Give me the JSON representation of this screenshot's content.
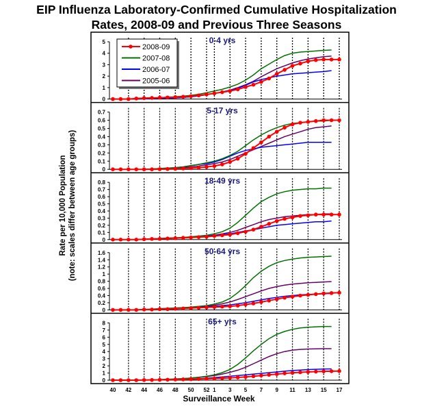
{
  "chart_data": {
    "type": "line",
    "title": "EIP Influenza Laboratory-Confirmed Cumulative Hospitalization Rates, 2008-09 and Previous Three Seasons",
    "title_lines": [
      "EIP Influenza Laboratory-Confirmed Cumulative Hospitalization",
      "Rates, 2008-09 and Previous Three Seasons"
    ],
    "xlabel": "Surveillance Week",
    "ylabel_lines": [
      "Rate per 10,000 Population",
      "(note: scales differ between age groups)"
    ],
    "x": [
      40,
      41,
      42,
      43,
      44,
      45,
      46,
      47,
      48,
      49,
      50,
      51,
      52,
      1,
      2,
      3,
      4,
      5,
      6,
      7,
      8,
      9,
      10,
      11,
      12,
      13,
      14,
      15,
      16,
      17
    ],
    "x_tick_labels": [
      "40",
      "42",
      "44",
      "46",
      "48",
      "50",
      "52",
      "1",
      "3",
      "5",
      "7",
      "9",
      "11",
      "13",
      "15",
      "17"
    ],
    "legend": {
      "placement": "top-left of first panel",
      "entries": [
        "2008-09",
        "2007-08",
        "2006-07",
        "2005-06"
      ]
    },
    "colors": {
      "2008-09": "#ff0000",
      "2007-08": "#007000",
      "2006-07": "#0000ff",
      "2005-06": "#660066"
    },
    "grid": "vertical dotted lines at labelled weeks",
    "panels": [
      {
        "title": "0-4 yrs",
        "ylim": [
          0,
          5
        ],
        "yticks": [
          "0",
          "1",
          "2",
          "3",
          "4",
          "5"
        ],
        "series": [
          {
            "name": "2008-09",
            "values": [
              0,
              0,
              0,
              0.05,
              0.08,
              0.1,
              0.12,
              0.14,
              0.17,
              0.2,
              0.25,
              0.32,
              0.4,
              0.5,
              0.6,
              0.7,
              0.85,
              1.05,
              1.25,
              1.5,
              1.8,
              2.2,
              2.55,
              2.9,
              3.1,
              3.3,
              3.4,
              3.45,
              3.45,
              3.45
            ]
          },
          {
            "name": "2007-08",
            "values": [
              0,
              0,
              0,
              0.02,
              0.05,
              0.08,
              0.12,
              0.16,
              0.2,
              0.25,
              0.32,
              0.42,
              0.55,
              0.7,
              0.85,
              1.05,
              1.3,
              1.65,
              2.1,
              2.65,
              3.05,
              3.45,
              3.8,
              4.0,
              4.1,
              4.15,
              4.2,
              4.25,
              4.28
            ]
          },
          {
            "name": "2006-07",
            "values": [
              0,
              0,
              0,
              0,
              0.02,
              0.04,
              0.06,
              0.08,
              0.1,
              0.15,
              0.2,
              0.28,
              0.38,
              0.5,
              0.6,
              0.75,
              0.95,
              1.2,
              1.5,
              1.7,
              1.85,
              2.0,
              2.1,
              2.2,
              2.25,
              2.3,
              2.35,
              2.4,
              2.48
            ]
          },
          {
            "name": "2005-06",
            "values": [
              0,
              0,
              0,
              0,
              0.02,
              0.04,
              0.06,
              0.08,
              0.1,
              0.14,
              0.2,
              0.28,
              0.38,
              0.5,
              0.62,
              0.78,
              1.0,
              1.25,
              1.55,
              1.95,
              2.3,
              2.65,
              2.9,
              3.15,
              3.35,
              3.5,
              3.6,
              3.7,
              3.75
            ]
          }
        ]
      },
      {
        "title": "5-17 yrs",
        "ylim": [
          0,
          0.7
        ],
        "yticks": [
          "0",
          "0.1",
          "0.2",
          "0.3",
          "0.4",
          "0.5",
          "0.6",
          "0.7"
        ],
        "series": [
          {
            "name": "2008-09",
            "values": [
              0,
              0,
              0,
              0,
              0,
              0,
              0.002,
              0.004,
              0.006,
              0.01,
              0.015,
              0.02,
              0.03,
              0.04,
              0.06,
              0.09,
              0.13,
              0.19,
              0.26,
              0.33,
              0.4,
              0.46,
              0.51,
              0.55,
              0.57,
              0.58,
              0.59,
              0.6,
              0.6,
              0.6
            ]
          },
          {
            "name": "2007-08",
            "values": [
              0,
              0,
              0,
              0,
              0,
              0.005,
              0.01,
              0.015,
              0.02,
              0.03,
              0.045,
              0.06,
              0.08,
              0.1,
              0.13,
              0.17,
              0.22,
              0.29,
              0.36,
              0.42,
              0.47,
              0.51,
              0.54,
              0.56,
              0.57,
              0.58,
              0.59,
              0.59,
              0.6
            ]
          },
          {
            "name": "2006-07",
            "values": [
              0,
              0,
              0,
              0,
              0,
              0.005,
              0.01,
              0.015,
              0.02,
              0.03,
              0.045,
              0.06,
              0.07,
              0.09,
              0.12,
              0.16,
              0.2,
              0.23,
              0.25,
              0.27,
              0.28,
              0.29,
              0.3,
              0.31,
              0.32,
              0.33,
              0.33,
              0.33,
              0.33
            ]
          },
          {
            "name": "2005-06",
            "values": [
              0,
              0,
              0,
              0,
              0,
              0,
              0.005,
              0.01,
              0.015,
              0.02,
              0.03,
              0.04,
              0.055,
              0.07,
              0.09,
              0.12,
              0.16,
              0.2,
              0.24,
              0.28,
              0.32,
              0.36,
              0.4,
              0.43,
              0.46,
              0.49,
              0.51,
              0.52,
              0.53
            ]
          }
        ]
      },
      {
        "title": "18-49 yrs",
        "ylim": [
          0,
          0.8
        ],
        "yticks": [
          "0",
          "0.1",
          "0.2",
          "0.3",
          "0.4",
          "0.5",
          "0.6",
          "0.7",
          "0.8"
        ],
        "series": [
          {
            "name": "2008-09",
            "values": [
              0,
              0,
              0,
              0,
              0.005,
              0.01,
              0.01,
              0.015,
              0.02,
              0.025,
              0.03,
              0.035,
              0.04,
              0.05,
              0.06,
              0.07,
              0.09,
              0.11,
              0.14,
              0.18,
              0.22,
              0.26,
              0.29,
              0.31,
              0.33,
              0.34,
              0.35,
              0.35,
              0.35,
              0.35
            ]
          },
          {
            "name": "2007-08",
            "values": [
              0,
              0,
              0,
              0,
              0.005,
              0.01,
              0.015,
              0.02,
              0.025,
              0.03,
              0.04,
              0.05,
              0.06,
              0.08,
              0.11,
              0.16,
              0.24,
              0.34,
              0.44,
              0.53,
              0.59,
              0.64,
              0.67,
              0.69,
              0.7,
              0.71,
              0.71,
              0.72,
              0.72
            ]
          },
          {
            "name": "2006-07",
            "values": [
              0,
              0,
              0,
              0,
              0.005,
              0.01,
              0.015,
              0.02,
              0.025,
              0.03,
              0.035,
              0.04,
              0.05,
              0.06,
              0.07,
              0.08,
              0.1,
              0.12,
              0.14,
              0.16,
              0.18,
              0.2,
              0.21,
              0.22,
              0.23,
              0.24,
              0.25,
              0.25,
              0.26
            ]
          },
          {
            "name": "2005-06",
            "values": [
              0,
              0,
              0,
              0,
              0.005,
              0.01,
              0.015,
              0.02,
              0.025,
              0.03,
              0.035,
              0.04,
              0.05,
              0.06,
              0.08,
              0.1,
              0.13,
              0.17,
              0.21,
              0.25,
              0.28,
              0.3,
              0.32,
              0.33,
              0.34,
              0.35,
              0.35,
              0.36,
              0.36
            ]
          }
        ]
      },
      {
        "title": "50-64 yrs",
        "ylim": [
          0,
          1.6
        ],
        "yticks": [
          "0",
          "0.2",
          "0.4",
          "0.6",
          "0.8",
          "1",
          "1.2",
          "1.4",
          "1.6"
        ],
        "series": [
          {
            "name": "2008-09",
            "values": [
              0,
              0,
              0,
              0,
              0.01,
              0.01,
              0.02,
              0.02,
              0.03,
              0.04,
              0.05,
              0.06,
              0.07,
              0.08,
              0.09,
              0.1,
              0.12,
              0.15,
              0.18,
              0.22,
              0.26,
              0.3,
              0.34,
              0.37,
              0.4,
              0.42,
              0.44,
              0.46,
              0.47,
              0.48
            ]
          },
          {
            "name": "2007-08",
            "values": [
              0,
              0,
              0,
              0,
              0.01,
              0.02,
              0.03,
              0.04,
              0.05,
              0.06,
              0.08,
              0.1,
              0.12,
              0.16,
              0.22,
              0.32,
              0.48,
              0.68,
              0.9,
              1.08,
              1.22,
              1.32,
              1.38,
              1.42,
              1.45,
              1.47,
              1.48,
              1.49,
              1.5
            ]
          },
          {
            "name": "2006-07",
            "values": [
              0,
              0,
              0,
              0,
              0.01,
              0.02,
              0.03,
              0.04,
              0.05,
              0.06,
              0.07,
              0.08,
              0.09,
              0.1,
              0.12,
              0.14,
              0.17,
              0.2,
              0.24,
              0.28,
              0.32,
              0.35,
              0.38,
              0.4,
              0.42,
              0.43,
              0.44,
              0.45,
              0.46
            ]
          },
          {
            "name": "2005-06",
            "values": [
              0,
              0,
              0,
              0,
              0.01,
              0.02,
              0.03,
              0.04,
              0.05,
              0.06,
              0.07,
              0.08,
              0.1,
              0.13,
              0.17,
              0.22,
              0.29,
              0.37,
              0.45,
              0.53,
              0.6,
              0.65,
              0.69,
              0.72,
              0.74,
              0.76,
              0.77,
              0.78,
              0.79
            ]
          }
        ]
      },
      {
        "title": "65+ yrs",
        "ylim": [
          0,
          8
        ],
        "yticks": [
          "0",
          "1",
          "2",
          "3",
          "4",
          "5",
          "6",
          "7",
          "8"
        ],
        "series": [
          {
            "name": "2008-09",
            "values": [
              0,
              0,
              0,
              0,
              0.02,
              0.03,
              0.05,
              0.07,
              0.09,
              0.11,
              0.13,
              0.16,
              0.2,
              0.24,
              0.28,
              0.33,
              0.38,
              0.45,
              0.55,
              0.65,
              0.75,
              0.85,
              0.95,
              1.03,
              1.1,
              1.15,
              1.2,
              1.23,
              1.25,
              1.27
            ]
          },
          {
            "name": "2007-08",
            "values": [
              0,
              0,
              0,
              0,
              0.02,
              0.05,
              0.08,
              0.12,
              0.16,
              0.22,
              0.3,
              0.4,
              0.55,
              0.75,
              1.05,
              1.5,
              2.2,
              3.1,
              4.1,
              5.0,
              5.8,
              6.4,
              6.8,
              7.1,
              7.3,
              7.4,
              7.45,
              7.5,
              7.5
            ]
          },
          {
            "name": "2006-07",
            "values": [
              0,
              0,
              0,
              0,
              0.02,
              0.04,
              0.06,
              0.08,
              0.1,
              0.13,
              0.17,
              0.22,
              0.28,
              0.35,
              0.45,
              0.55,
              0.65,
              0.75,
              0.85,
              0.95,
              1.05,
              1.15,
              1.25,
              1.35,
              1.42,
              1.48,
              1.52,
              1.55,
              1.58
            ]
          },
          {
            "name": "2005-06",
            "values": [
              0,
              0,
              0,
              0,
              0.02,
              0.05,
              0.08,
              0.12,
              0.16,
              0.22,
              0.3,
              0.4,
              0.5,
              0.65,
              0.85,
              1.1,
              1.4,
              1.8,
              2.3,
              2.8,
              3.3,
              3.7,
              4.0,
              4.2,
              4.3,
              4.35,
              4.38,
              4.4,
              4.4
            ]
          }
        ]
      }
    ]
  }
}
